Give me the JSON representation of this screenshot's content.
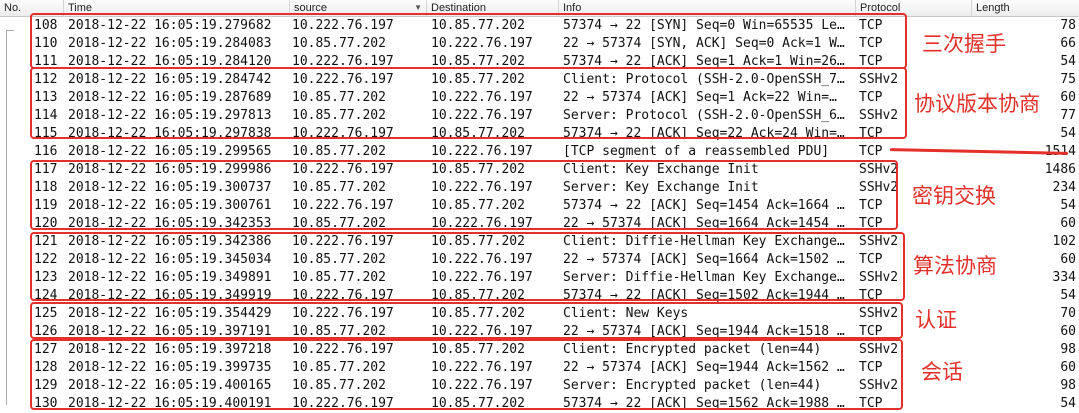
{
  "columns": {
    "no": "No.",
    "time": "Time",
    "source": "source",
    "destination": "Destination",
    "info": "Info",
    "protocol": "Protocol",
    "length": "Length"
  },
  "rows": [
    {
      "no": "108",
      "time": "2018-12-22 16:05:19.279682",
      "source": "10.222.76.197",
      "destination": "10.85.77.202",
      "info": "57374 → 22 [SYN] Seq=0 Win=65535 Le…",
      "protocol": "TCP",
      "length": "78"
    },
    {
      "no": "110",
      "time": "2018-12-22 16:05:19.284083",
      "source": "10.85.77.202",
      "destination": "10.222.76.197",
      "info": "22 → 57374 [SYN, ACK] Seq=0 Ack=1 W…",
      "protocol": "TCP",
      "length": "66"
    },
    {
      "no": "111",
      "time": "2018-12-22 16:05:19.284120",
      "source": "10.222.76.197",
      "destination": "10.85.77.202",
      "info": "57374 → 22 [ACK] Seq=1 Ack=1 Win=26…",
      "protocol": "TCP",
      "length": "54"
    },
    {
      "no": "112",
      "time": "2018-12-22 16:05:19.284742",
      "source": "10.222.76.197",
      "destination": "10.85.77.202",
      "info": "Client: Protocol (SSH-2.0-OpenSSH_7…",
      "protocol": "SSHv2",
      "length": "75"
    },
    {
      "no": "113",
      "time": "2018-12-22 16:05:19.287689",
      "source": "10.85.77.202",
      "destination": "10.222.76.197",
      "info": "22 → 57374 [ACK] Seq=1 Ack=22 Win=…",
      "protocol": "TCP",
      "length": "60"
    },
    {
      "no": "114",
      "time": "2018-12-22 16:05:19.297813",
      "source": "10.85.77.202",
      "destination": "10.222.76.197",
      "info": "Server: Protocol (SSH-2.0-OpenSSH_6…",
      "protocol": "SSHv2",
      "length": "77"
    },
    {
      "no": "115",
      "time": "2018-12-22 16:05:19.297838",
      "source": "10.222.76.197",
      "destination": "10.85.77.202",
      "info": "57374 → 22 [ACK] Seq=22 Ack=24 Win=…",
      "protocol": "TCP",
      "length": "54"
    },
    {
      "no": "116",
      "time": "2018-12-22 16:05:19.299565",
      "source": "10.85.77.202",
      "destination": "10.222.76.197",
      "info": "[TCP segment of a reassembled PDU]",
      "protocol": "TCP",
      "length": "1514"
    },
    {
      "no": "117",
      "time": "2018-12-22 16:05:19.299986",
      "source": "10.222.76.197",
      "destination": "10.85.77.202",
      "info": "Client: Key Exchange Init",
      "protocol": "SSHv2",
      "length": "1486"
    },
    {
      "no": "118",
      "time": "2018-12-22 16:05:19.300737",
      "source": "10.85.77.202",
      "destination": "10.222.76.197",
      "info": "Server: Key Exchange Init",
      "protocol": "SSHv2",
      "length": "234"
    },
    {
      "no": "119",
      "time": "2018-12-22 16:05:19.300761",
      "source": "10.222.76.197",
      "destination": "10.85.77.202",
      "info": "57374 → 22 [ACK] Seq=1454 Ack=1664 …",
      "protocol": "TCP",
      "length": "54"
    },
    {
      "no": "120",
      "time": "2018-12-22 16:05:19.342353",
      "source": "10.85.77.202",
      "destination": "10.222.76.197",
      "info": "22 → 57374 [ACK] Seq=1664 Ack=1454 …",
      "protocol": "TCP",
      "length": "60"
    },
    {
      "no": "121",
      "time": "2018-12-22 16:05:19.342386",
      "source": "10.222.76.197",
      "destination": "10.85.77.202",
      "info": "Client: Diffie-Hellman Key Exchange…",
      "protocol": "SSHv2",
      "length": "102"
    },
    {
      "no": "122",
      "time": "2018-12-22 16:05:19.345034",
      "source": "10.85.77.202",
      "destination": "10.222.76.197",
      "info": "22 → 57374 [ACK] Seq=1664 Ack=1502 …",
      "protocol": "TCP",
      "length": "60"
    },
    {
      "no": "123",
      "time": "2018-12-22 16:05:19.349891",
      "source": "10.85.77.202",
      "destination": "10.222.76.197",
      "info": "Server: Diffie-Hellman Key Exchange…",
      "protocol": "SSHv2",
      "length": "334"
    },
    {
      "no": "124",
      "time": "2018-12-22 16:05:19.349919",
      "source": "10.222.76.197",
      "destination": "10.85.77.202",
      "info": "57374 → 22 [ACK] Seq=1502 Ack=1944 …",
      "protocol": "TCP",
      "length": "54"
    },
    {
      "no": "125",
      "time": "2018-12-22 16:05:19.354429",
      "source": "10.222.76.197",
      "destination": "10.85.77.202",
      "info": "Client: New Keys",
      "protocol": "SSHv2",
      "length": "70"
    },
    {
      "no": "126",
      "time": "2018-12-22 16:05:19.397191",
      "source": "10.85.77.202",
      "destination": "10.222.76.197",
      "info": "22 → 57374 [ACK] Seq=1944 Ack=1518 …",
      "protocol": "TCP",
      "length": "60"
    },
    {
      "no": "127",
      "time": "2018-12-22 16:05:19.397218",
      "source": "10.222.76.197",
      "destination": "10.85.77.202",
      "info": "Client: Encrypted packet (len=44)",
      "protocol": "SSHv2",
      "length": "98"
    },
    {
      "no": "128",
      "time": "2018-12-22 16:05:19.399735",
      "source": "10.85.77.202",
      "destination": "10.222.76.197",
      "info": "22 → 57374 [ACK] Seq=1944 Ack=1562 …",
      "protocol": "TCP",
      "length": "60"
    },
    {
      "no": "129",
      "time": "2018-12-22 16:05:19.400165",
      "source": "10.85.77.202",
      "destination": "10.222.76.197",
      "info": "Server: Encrypted packet (len=44)",
      "protocol": "SSHv2",
      "length": "98"
    },
    {
      "no": "130",
      "time": "2018-12-22 16:05:19.400191",
      "source": "10.222.76.197",
      "destination": "10.85.77.202",
      "info": "57374 → 22 [ACK] Seq=1562 Ack=1988 …",
      "protocol": "TCP",
      "length": "54"
    }
  ],
  "annotations": {
    "handshake": "三次握手",
    "version_negotiation": "协议版本协商",
    "key_exchange": "密钥交换",
    "algorithm_negotiation": "算法协商",
    "authentication": "认证",
    "session": "会话"
  },
  "colors": {
    "annotation": "#e4302a"
  }
}
